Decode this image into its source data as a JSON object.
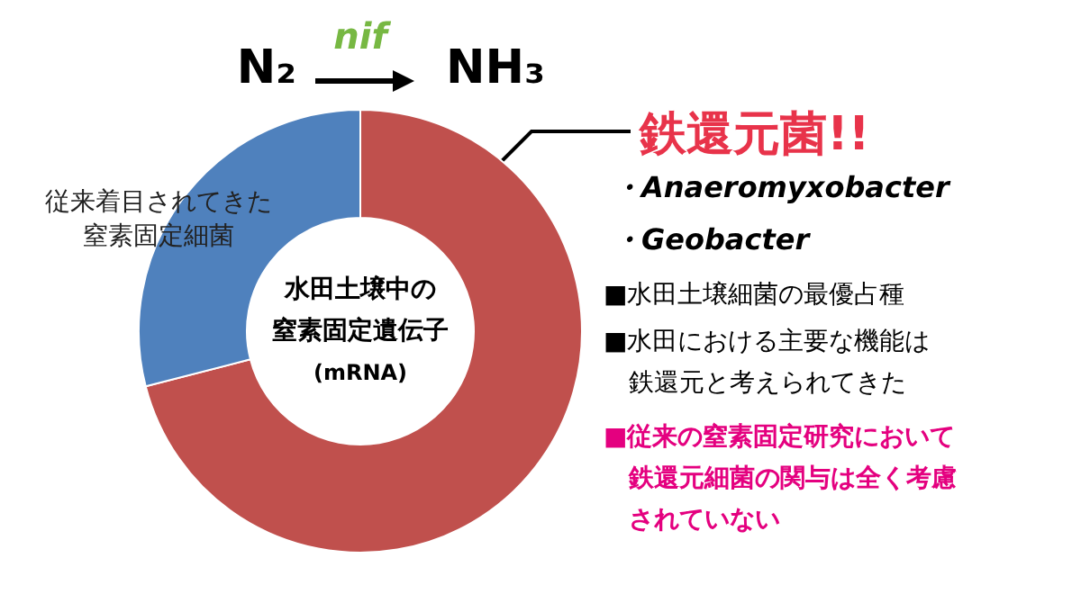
{
  "chart_data": {
    "type": "donut",
    "categories": [
      "鉄還元菌!!",
      "従来着目されてきた窒素固定細菌"
    ],
    "values": [
      71,
      29
    ],
    "colors": [
      "#c0504d",
      "#4f81bd"
    ],
    "legend": false,
    "annotations": [
      "N₂",
      "nif",
      "NH₃",
      "・Anaeromyxobacter",
      "・Geobacter",
      "■水田土壌細菌の最優占種",
      "■水田における主要な機能は",
      "鉄還元と考えられてきた",
      "■従来の窒素固定研究において",
      "鉄還元細菌の関与は全く考慮",
      "されていない",
      "水田土壌中の",
      "窒素固定遺伝子",
      "(mRNA)"
    ]
  }
}
